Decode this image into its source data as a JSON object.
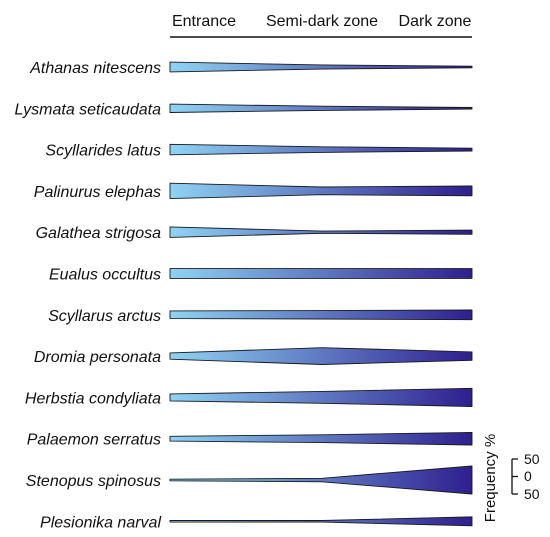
{
  "chart_data": {
    "type": "kite",
    "zones": [
      "Entrance",
      "Semi-dark zone",
      "Dark zone"
    ],
    "frequency_label": "Frequency %",
    "scale_ticks": [
      "50",
      "0",
      "50"
    ],
    "scale_max": 50,
    "color_light": "#8fd3f4",
    "color_dark": "#2e1f8f",
    "series": [
      {
        "name": "Athanas nitescens",
        "values": [
          14,
          6,
          2
        ]
      },
      {
        "name": "Lysmata seticaudata",
        "values": [
          12,
          6,
          2
        ]
      },
      {
        "name": "Scyllarides latus",
        "values": [
          15,
          8,
          4
        ]
      },
      {
        "name": "Palinurus elephas",
        "values": [
          22,
          11,
          14
        ]
      },
      {
        "name": "Galathea strigosa",
        "values": [
          15,
          3,
          6
        ]
      },
      {
        "name": "Eualus occultus",
        "values": [
          14,
          14,
          14
        ]
      },
      {
        "name": "Scyllarus arctus",
        "values": [
          11,
          12,
          14
        ]
      },
      {
        "name": "Dromia personata",
        "values": [
          9,
          24,
          12
        ]
      },
      {
        "name": "Herbstia condyliata",
        "values": [
          10,
          17,
          26
        ]
      },
      {
        "name": "Palaemon serratus",
        "values": [
          7,
          11,
          18
        ]
      },
      {
        "name": "Stenopus spinosus",
        "values": [
          1,
          5,
          40
        ]
      },
      {
        "name": "Plesionika narval",
        "values": [
          1,
          2,
          13
        ]
      }
    ]
  }
}
